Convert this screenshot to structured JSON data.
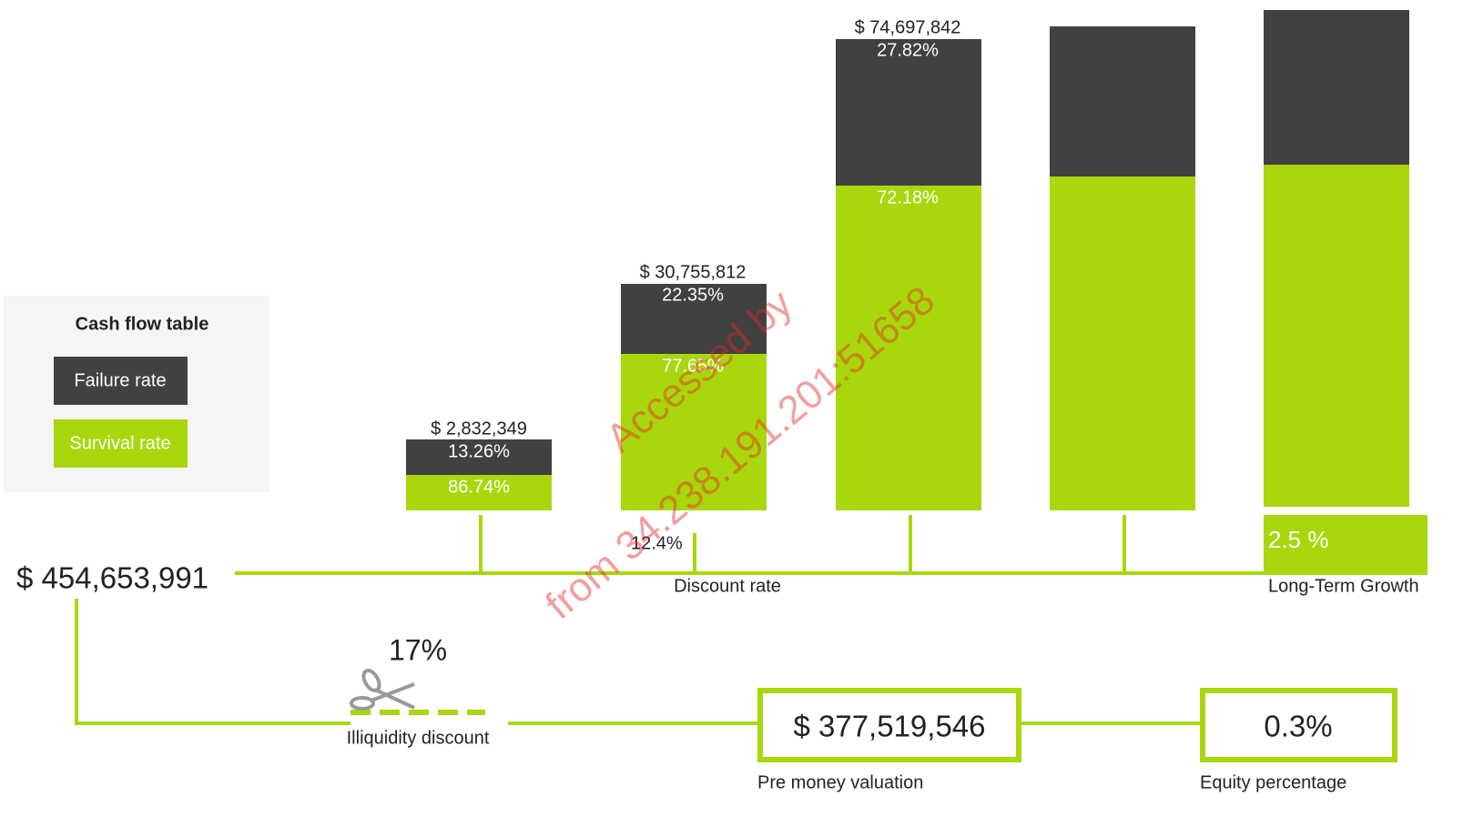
{
  "legend": {
    "title": "Cash flow table",
    "items": [
      "Failure rate",
      "Survival rate"
    ]
  },
  "columns": [
    {
      "total": "$ 2,832,349",
      "failure": "13.26%",
      "survival": "86.74%"
    },
    {
      "total": "$ 30,755,812",
      "failure": "22.35%",
      "survival": "77.65%"
    },
    {
      "total": "$ 74,697,842",
      "failure": "27.82%",
      "survival": "72.18%"
    }
  ],
  "discount": {
    "value": "12.4%",
    "label": "Discount rate"
  },
  "growth": {
    "value": "2.5 %",
    "label": "Long-Term Growth"
  },
  "sum": "$ 454,653,991",
  "illiquidity": {
    "value": "17%",
    "label": "Illiquidity discount"
  },
  "pre_money": {
    "value": "$ 377,519,546",
    "label": "Pre money valuation"
  },
  "equity": {
    "value": "0.3%",
    "label": "Equity percentage"
  },
  "watermark": [
    "Accessed by",
    "from 34.238.191.201:51658"
  ]
}
